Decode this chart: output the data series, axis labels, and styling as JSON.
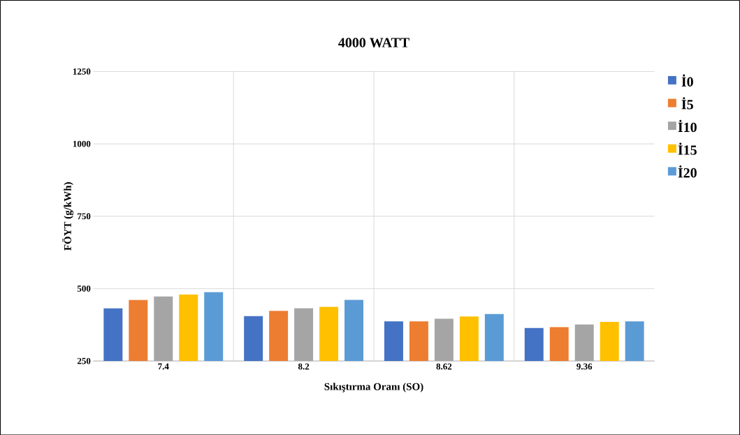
{
  "chart_data": {
    "type": "bar",
    "title": "4000 WATT",
    "xlabel": "Sıkıştırma Oranı (SO)",
    "ylabel": "FÖYT (g/kWh)",
    "categories": [
      "7.4",
      "8.2",
      "8.62",
      "9.36"
    ],
    "series": [
      {
        "name": "İ0",
        "color": "#4472c4",
        "values": [
          432,
          405,
          387,
          364
        ]
      },
      {
        "name": "İ5",
        "color": "#ed7d31",
        "values": [
          461,
          423,
          387,
          367
        ]
      },
      {
        "name": "İ10",
        "color": "#a5a5a5",
        "values": [
          473,
          432,
          396,
          376
        ]
      },
      {
        "name": "İ15",
        "color": "#ffc000",
        "values": [
          480,
          437,
          404,
          385
        ]
      },
      {
        "name": "İ20",
        "color": "#5b9bd5",
        "values": [
          488,
          461,
          412,
          387
        ]
      }
    ],
    "ylim": [
      250,
      1250
    ],
    "yticks": [
      250,
      500,
      750,
      1000,
      1250
    ],
    "grid": true,
    "legend": "right"
  }
}
